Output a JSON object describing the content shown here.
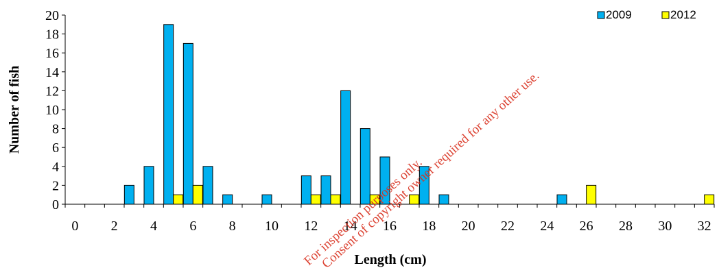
{
  "chart_data": {
    "type": "bar",
    "title": "",
    "xlabel": "Length (cm)",
    "ylabel": "Number of fish",
    "ylim": [
      0,
      20
    ],
    "yticks": [
      "0",
      "2",
      "4",
      "6",
      "8",
      "10",
      "12",
      "14",
      "16",
      "18",
      "20"
    ],
    "xticks": [
      "0",
      "2",
      "4",
      "6",
      "8",
      "10",
      "12",
      "14",
      "16",
      "18",
      "20",
      "22",
      "24",
      "26",
      "28",
      "30",
      "32"
    ],
    "categories": [
      0,
      1,
      2,
      3,
      4,
      5,
      6,
      7,
      8,
      9,
      10,
      11,
      12,
      13,
      14,
      15,
      16,
      17,
      18,
      19,
      20,
      21,
      22,
      23,
      24,
      25,
      26,
      27,
      28,
      29,
      30,
      31,
      32
    ],
    "series": [
      {
        "name": "2009",
        "color": "#00b0f0",
        "values": [
          0,
          0,
          0,
          2,
          4,
          19,
          17,
          4,
          1,
          0,
          1,
          0,
          3,
          3,
          12,
          8,
          5,
          0,
          4,
          1,
          0,
          0,
          0,
          0,
          0,
          1,
          0,
          0,
          0,
          0,
          0,
          0,
          0
        ]
      },
      {
        "name": "2012",
        "color": "#ffff00",
        "values": [
          0,
          0,
          0,
          0,
          0,
          1,
          2,
          0,
          0,
          0,
          0,
          0,
          1,
          1,
          0,
          1,
          0,
          1,
          0,
          0,
          0,
          0,
          0,
          0,
          0,
          0,
          2,
          0,
          0,
          0,
          0,
          0,
          1
        ]
      }
    ],
    "legend_position": "top-right",
    "grid": false
  },
  "legend": {
    "items": [
      {
        "label": "2009",
        "color": "#00b0f0"
      },
      {
        "label": "2012",
        "color": "#ffff00"
      }
    ]
  },
  "watermark": {
    "line1": "For inspection purposes only.",
    "line2": "Consent of copyright owner required for any other use."
  }
}
